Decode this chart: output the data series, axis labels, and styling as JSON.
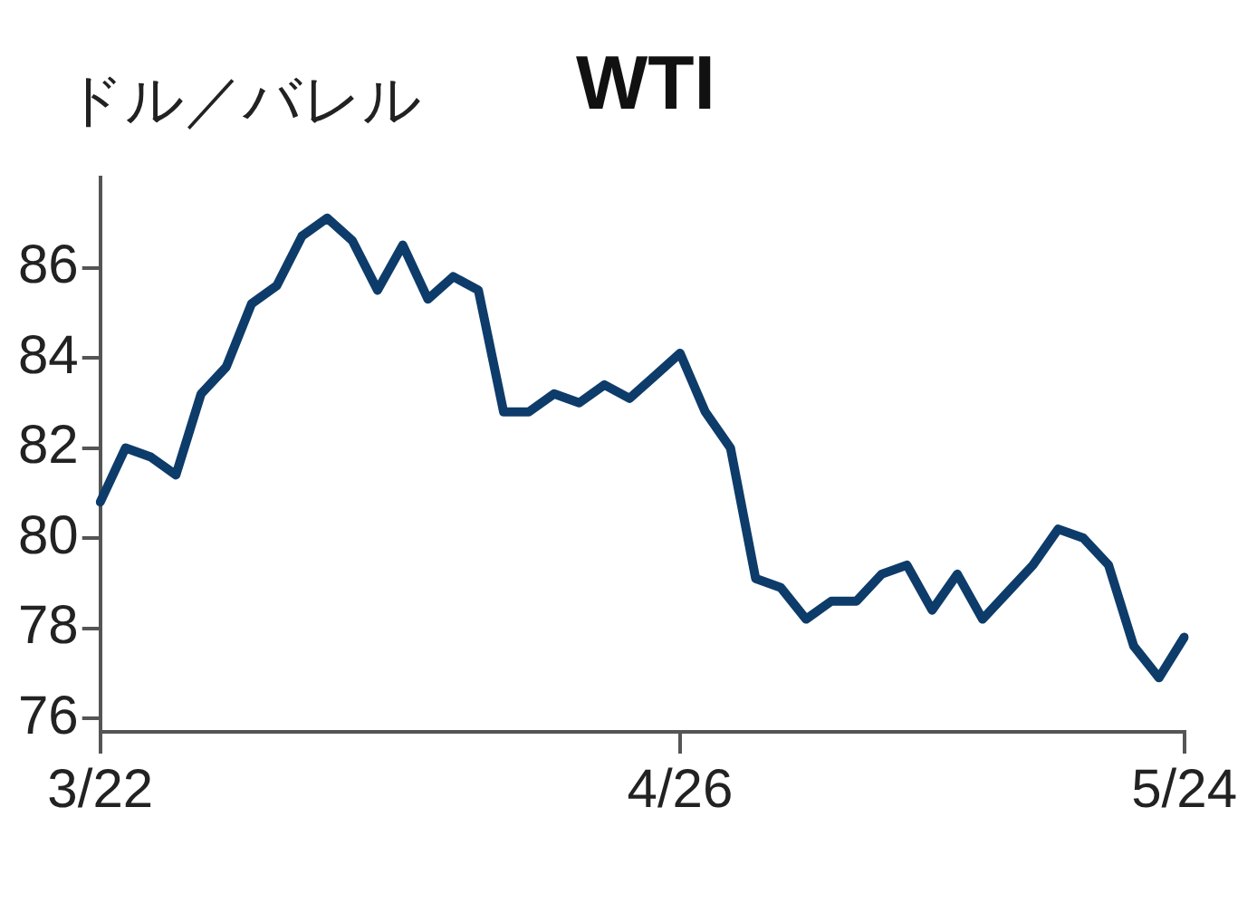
{
  "chart_data": {
    "type": "line",
    "title": "WTI",
    "ylabel": "ドル／バレル",
    "categories": [
      "3/22",
      null,
      null,
      null,
      null,
      null,
      null,
      null,
      null,
      null,
      null,
      null,
      null,
      null,
      null,
      null,
      null,
      null,
      null,
      null,
      null,
      null,
      null,
      "4/26",
      null,
      null,
      null,
      null,
      null,
      null,
      null,
      null,
      null,
      null,
      null,
      null,
      null,
      null,
      null,
      null,
      null,
      null,
      null,
      "5/24"
    ],
    "series": [
      {
        "color": "#0d3c6a",
        "values": [
          80.8,
          82.0,
          81.8,
          81.4,
          83.2,
          83.8,
          85.2,
          85.6,
          86.7,
          87.1,
          86.6,
          85.5,
          86.5,
          85.3,
          85.8,
          85.5,
          82.8,
          82.8,
          83.2,
          83.0,
          83.4,
          83.1,
          83.6,
          84.1,
          82.8,
          82.0,
          79.1,
          78.9,
          78.2,
          78.6,
          78.6,
          79.2,
          79.4,
          78.4,
          79.2,
          78.2,
          78.8,
          79.4,
          80.2,
          80.0,
          79.4,
          77.6,
          76.9,
          77.8
        ]
      }
    ],
    "ylim": [
      75.7,
      88
    ],
    "yticks": [
      76,
      78,
      80,
      82,
      84,
      86
    ],
    "grid": false,
    "legend": false,
    "marker": "none",
    "line_style": "solid"
  }
}
